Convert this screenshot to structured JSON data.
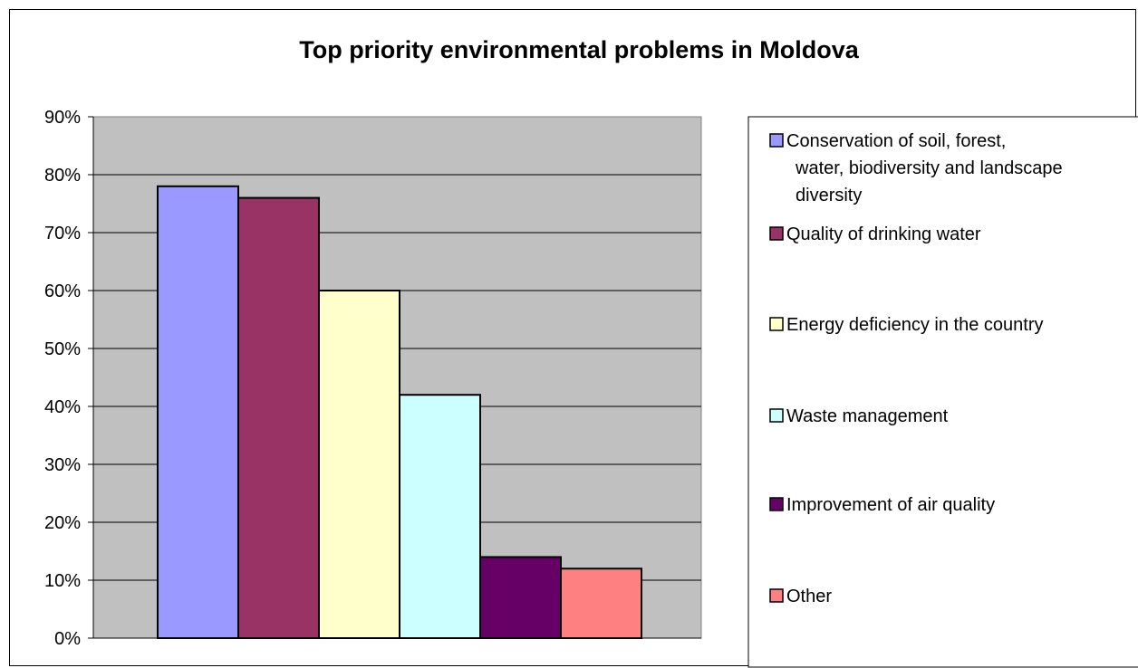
{
  "chart_data": {
    "type": "bar",
    "title": "Top priority environmental problems in Moldova",
    "xlabel": "",
    "ylabel": "",
    "ylim": [
      0,
      0.9
    ],
    "y_tick_step": 0.1,
    "y_tick_labels": [
      "0%",
      "10%",
      "20%",
      "30%",
      "40%",
      "50%",
      "60%",
      "70%",
      "80%",
      "90%"
    ],
    "grid": true,
    "legend_position": "right",
    "plot_background": "#C0C0C0",
    "series": [
      {
        "name": "Conservation of soil, forest, water, biodiversity and landscape diversity",
        "value": 0.78,
        "color": "#9999FF"
      },
      {
        "name": "Quality of drinking water",
        "value": 0.76,
        "color": "#993366"
      },
      {
        "name": "Energy deficiency in the country",
        "value": 0.6,
        "color": "#FFFFCC"
      },
      {
        "name": "Waste management",
        "value": 0.42,
        "color": "#CCFFFF"
      },
      {
        "name": "Improvement of air quality",
        "value": 0.14,
        "color": "#660066"
      },
      {
        "name": "Other",
        "value": 0.12,
        "color": "#FF8080"
      }
    ]
  }
}
